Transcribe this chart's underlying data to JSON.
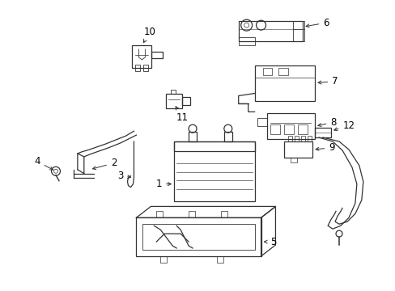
{
  "background_color": "#ffffff",
  "line_color": "#333333",
  "text_color": "#000000",
  "figsize": [
    4.89,
    3.6
  ],
  "dpi": 100,
  "label_fontsize": 8.5,
  "arrow_lw": 0.7,
  "part_lw": 0.9
}
